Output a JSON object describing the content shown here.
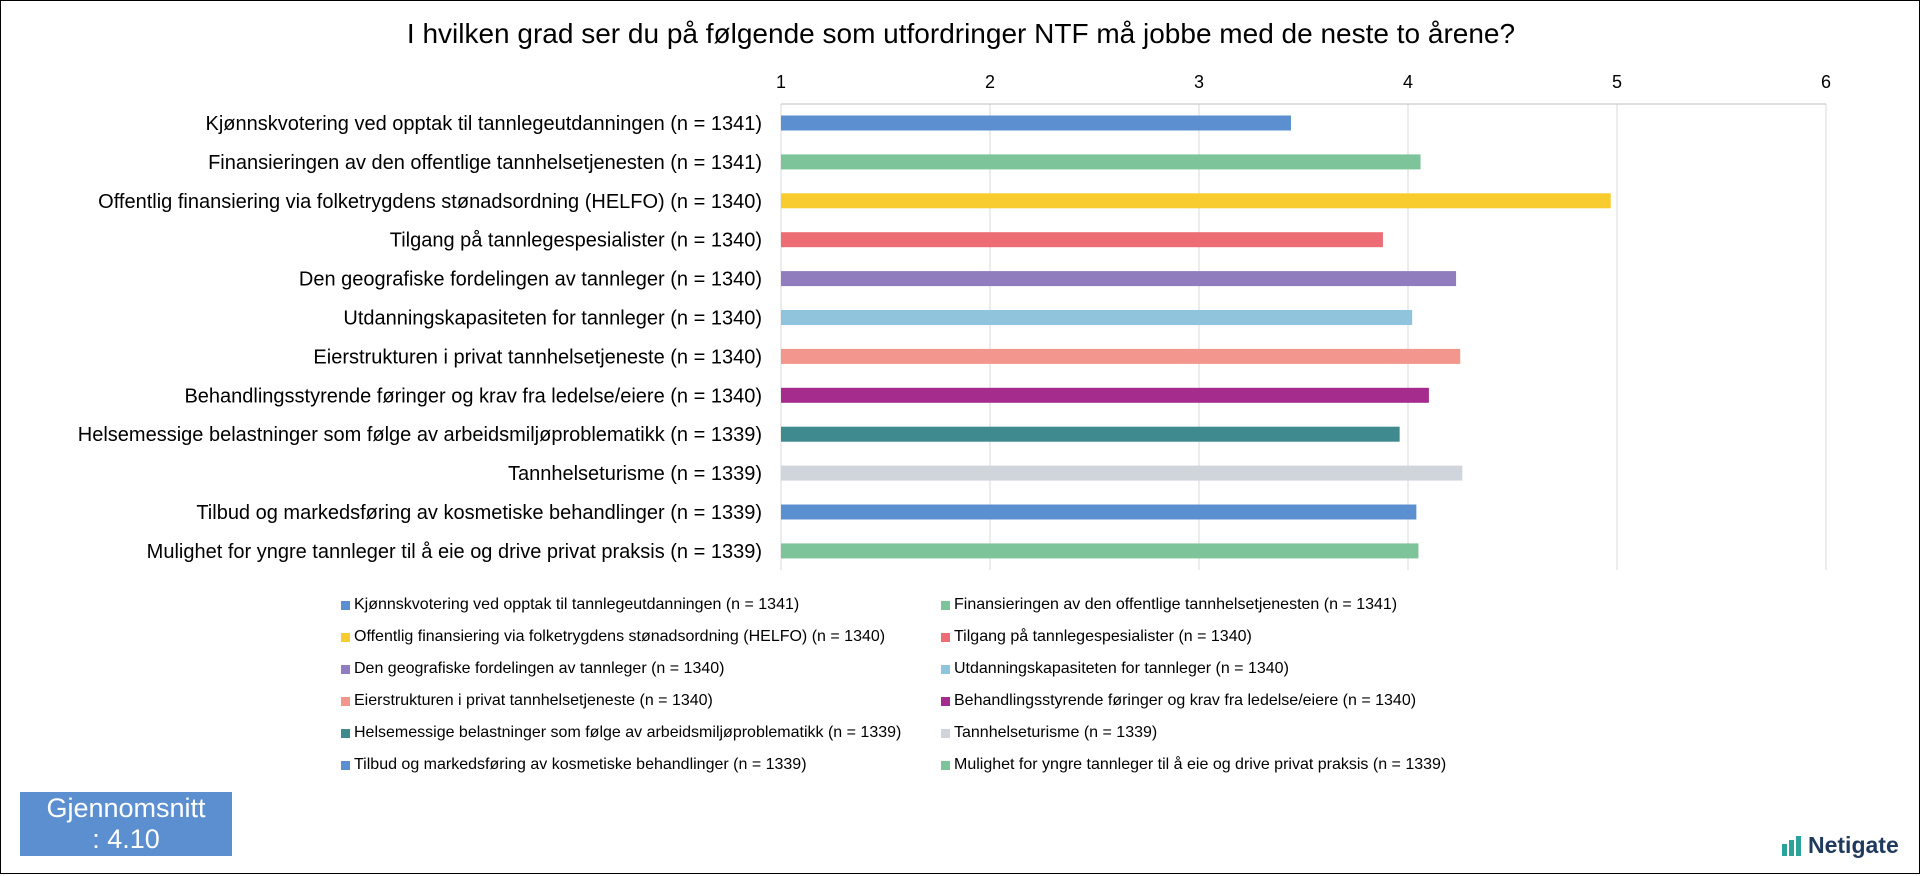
{
  "chart_data": {
    "type": "bar",
    "orientation": "horizontal",
    "title": "I hvilken grad ser du på følgende som utfordringer NTF må jobbe med de neste to årene?",
    "xlim": [
      1,
      6
    ],
    "ticks": [
      "1",
      "2",
      "3",
      "4",
      "5",
      "6"
    ],
    "grid": true,
    "legend_position": "bottom",
    "categories": [
      "Kjønnskvotering ved opptak til tannlegeutdanningen (n = 1341)",
      "Finansieringen av den offentlige tannhelsetjenesten (n = 1341)",
      "Offentlig finansiering via folketrygdens stønadsordning (HELFO) (n = 1340)",
      "Tilgang på tannlegespesialister (n = 1340)",
      "Den geografiske fordelingen av tannleger (n = 1340)",
      "Utdanningskapasiteten for tannleger (n = 1340)",
      "Eierstrukturen i privat tannhelsetjeneste (n = 1340)",
      "Behandlingsstyrende føringer og krav fra ledelse/eiere (n = 1340)",
      "Helsemessige belastninger som følge av arbeidsmiljøproblematikk (n = 1339)",
      "Tannhelseturisme (n = 1339)",
      "Tilbud og markedsføring av kosmetiske behandlinger (n = 1339)",
      "Mulighet for yngre tannleger til å eie og drive privat praksis (n = 1339)"
    ],
    "values": [
      3.44,
      4.06,
      4.97,
      3.88,
      4.23,
      4.02,
      4.25,
      4.1,
      3.96,
      4.26,
      4.04,
      4.05
    ],
    "colors": [
      "#5b8fd0",
      "#7dc49a",
      "#f8cc2e",
      "#ee6c73",
      "#8f7dbd",
      "#90c4dc",
      "#f3968e",
      "#a52b8c",
      "#3e8a8f",
      "#d0d4db",
      "#5b8fd0",
      "#7dc49a"
    ]
  },
  "average": {
    "line1": "Gjennomsnitt",
    "line2": ": 4.10"
  },
  "logo": {
    "text": "Netigate",
    "icon": "netigate-logo-icon"
  }
}
